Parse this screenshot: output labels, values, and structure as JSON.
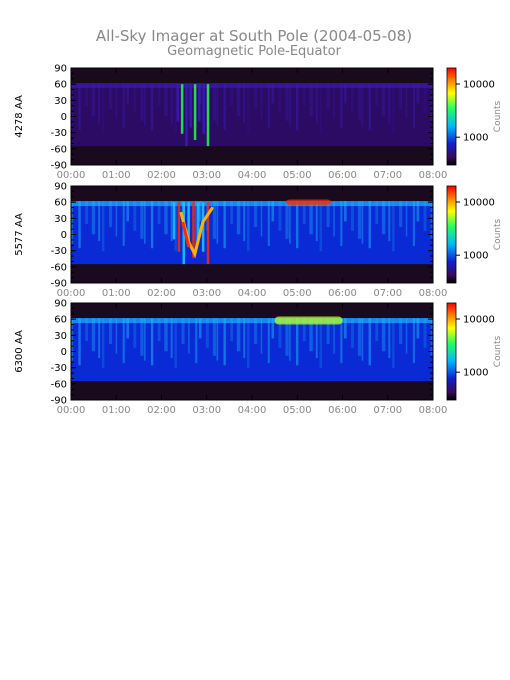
{
  "title": "All-Sky Imager at South Pole (2004-05-08)",
  "subtitle": "Geomagnetic Pole-Equator",
  "chart_data": [
    {
      "type": "heatmap",
      "ylabel": "4278 AA",
      "x_ticks": [
        "00:00",
        "01:00",
        "02:00",
        "03:00",
        "04:00",
        "05:00",
        "06:00",
        "07:00",
        "08:00"
      ],
      "xlim": [
        "00:00",
        "08:00"
      ],
      "y_ticks": [
        90,
        60,
        30,
        0,
        -30,
        -60,
        -90
      ],
      "ylim": [
        -90,
        90
      ],
      "colorbar": {
        "label": "Counts",
        "ticks": [
          10000,
          1000
        ],
        "scale": "log"
      },
      "colors": {
        "low": "#2b0b64",
        "mid": "#3a1db8",
        "high": "#22ff44"
      },
      "features": [
        {
          "x": [
            "02:20",
            "03:00"
          ],
          "y": [
            -55,
            60
          ],
          "desc": "bright vertical streaks"
        }
      ]
    },
    {
      "type": "heatmap",
      "ylabel": "5577 AA",
      "x_ticks": [
        "00:00",
        "01:00",
        "02:00",
        "03:00",
        "04:00",
        "05:00",
        "06:00",
        "07:00",
        "08:00"
      ],
      "xlim": [
        "00:00",
        "08:00"
      ],
      "y_ticks": [
        90,
        60,
        30,
        0,
        -30,
        -60,
        -90
      ],
      "ylim": [
        -90,
        90
      ],
      "colorbar": {
        "label": "Counts",
        "ticks": [
          10000,
          1000
        ],
        "scale": "log"
      },
      "colors": {
        "low": "#0a2ad6",
        "mid": "#1ec8ff",
        "high": "#ff2a00"
      },
      "features": [
        {
          "x": [
            "02:15",
            "03:00"
          ],
          "y": [
            -55,
            60
          ],
          "desc": "intense auroral arc (red/yellow)"
        },
        {
          "x": [
            "04:45",
            "05:45"
          ],
          "y": [
            55,
            65
          ],
          "desc": "green band near pole"
        }
      ]
    },
    {
      "type": "heatmap",
      "ylabel": "6300 AA",
      "x_ticks": [
        "00:00",
        "01:00",
        "02:00",
        "03:00",
        "04:00",
        "05:00",
        "06:00",
        "07:00",
        "08:00"
      ],
      "xlim": [
        "00:00",
        "08:00"
      ],
      "y_ticks": [
        90,
        60,
        30,
        0,
        -30,
        -60,
        -90
      ],
      "ylim": [
        -90,
        90
      ],
      "colorbar": {
        "label": "Counts",
        "ticks": [
          10000,
          1000
        ],
        "scale": "log"
      },
      "colors": {
        "low": "#0a2ad6",
        "mid": "#1ec8ff",
        "high": "#b8ff20"
      },
      "features": [
        {
          "x": [
            "04:30",
            "06:00"
          ],
          "y": [
            50,
            65
          ],
          "desc": "yellow-green polar band"
        }
      ]
    }
  ]
}
